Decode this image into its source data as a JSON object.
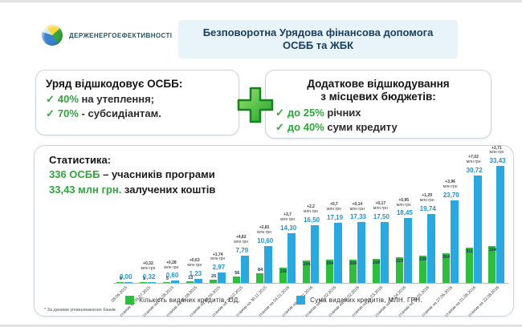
{
  "header": {
    "logo_text": "Держенергоефективності",
    "title_line1": "Безповоротна Урядова фінансова допомога",
    "title_line2": "ОСББ та ЖБК"
  },
  "gov_box": {
    "title": "Уряд відшкодовує ОСББ:",
    "items": [
      {
        "check": "✓",
        "highlight": "40%",
        "rest": " на утеплення;"
      },
      {
        "check": "✓",
        "highlight": "70%",
        "rest": " - субсидіантам."
      }
    ]
  },
  "local_box": {
    "title_line1": "Додаткове відшкодування",
    "title_line2": "з місцевих бюджетів:",
    "items": [
      {
        "check": "✓",
        "highlight": "до 25%",
        "rest": " річних"
      },
      {
        "check": "✓",
        "highlight": "до 40%",
        "rest": " суми кредиту"
      }
    ]
  },
  "stats": {
    "title": "Статистика:",
    "line1_value": "336 ОСББ",
    "line1_rest": " – учасників програми",
    "line2_value": "33,43 млн грн.",
    "line2_rest": " залучених коштів"
  },
  "colors": {
    "accent_green": "#2fa53c",
    "bar_green": "#2dbe3c",
    "bar_blue": "#29a9e1",
    "title_navy": "#1c3e60",
    "title_bg": "#e8f4f9"
  },
  "chart_data": {
    "type": "bar",
    "title": "",
    "xlabel": "",
    "ylabel": "",
    "grid": false,
    "legend_position": "bottom",
    "ylim_sum_mln_grn": [
      0,
      33.43
    ],
    "ylim_count_od": [
      0,
      324
    ],
    "categories": [
      "08.06.2015",
      "станом на 06.07.2015",
      "станом на 03.08.2015",
      "станом на 31.08.2015",
      "станом на 28.09.2015",
      "станом на 26.10.2015",
      "станом на 30.11.2015",
      "станом на 04.01.2016",
      "станом на 18.01.2016",
      "станом на 15.02.2016",
      "станом на 29.02.2016",
      "станом на 21.03.2016",
      "станом на 18.04.2016",
      "станом на 30.05.2016",
      "станом на 27.06.2016",
      "станом на 01.08.2016",
      "станом на 22.08.2016"
    ],
    "series": [
      {
        "name": "Кількість виданих кредитів, ОД.",
        "color": "#2dbe3c",
        "values": [
          0,
          1,
          5,
          13,
          25,
          56,
          84,
          132,
          194,
          204,
          206,
          208,
          223,
          239,
          264,
          311,
          324
        ]
      },
      {
        "name": "Сума виданих кредитів, МЛН. ГРН.",
        "color": "#29a9e1",
        "values": [
          0.0,
          0.32,
          0.6,
          1.23,
          2.97,
          7.79,
          10.6,
          14.3,
          16.5,
          17.19,
          17.33,
          17.5,
          18.45,
          19.74,
          23.7,
          30.72,
          33.43
        ]
      }
    ],
    "sum_labels": [
      "0,00",
      "0,32",
      "0,60",
      "1,23",
      "2,97",
      "7,79",
      "10,60",
      "14,30",
      "16,50",
      "17,19",
      "17,33",
      "17,50",
      "18,45",
      "19,74",
      "23,70",
      "30,72",
      "33,43"
    ],
    "count_labels": [
      "0",
      "1",
      "5",
      "13",
      "25",
      "56",
      "84",
      "132",
      "194",
      "204",
      "206",
      "208",
      "223",
      "239",
      "264",
      "311",
      "324"
    ],
    "deltas": [
      "",
      "+0,32",
      "+0,28",
      "+0,63",
      "+1,74",
      "+4,82",
      "+2,81",
      "+3,7",
      "+2,2",
      "+0,7",
      "+0,14",
      "+0,17",
      "+0,95",
      "+1,29",
      "+3,96",
      "+7,02",
      "+2,71"
    ],
    "annotation_unit": "млн грн",
    "footnote": "* За даними уповноважених банків"
  }
}
